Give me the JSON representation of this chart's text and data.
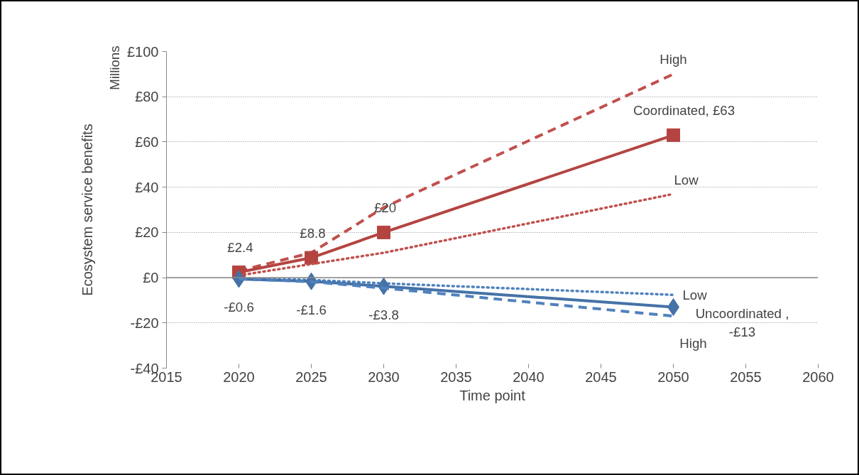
{
  "chart_data": {
    "type": "line",
    "xlabel": "Time point",
    "ylabel": "Ecosystem service benefits",
    "annotations": [
      "Millions"
    ],
    "x": [
      2020,
      2025,
      2030,
      2050
    ],
    "series": [
      {
        "name": "High",
        "color": "#c0504d",
        "line_style": "dashed",
        "marker": "none",
        "values": [
          3,
          11,
          31,
          90
        ]
      },
      {
        "color": "#b44441",
        "line_style": "solid",
        "marker": "square",
        "values": [
          2.4,
          8.8,
          20,
          63
        ],
        "value_labels": [
          "£2.4",
          "£8.8",
          "£20",
          "Coordinated, £63"
        ]
      },
      {
        "name": "Low",
        "color": "#c0504d",
        "line_style": "dotted",
        "marker": "none",
        "values": [
          1,
          6,
          11,
          37
        ]
      },
      {
        "name": "Low",
        "color": "#4f81bd",
        "line_style": "dotted",
        "marker": "none",
        "values": [
          -0.3,
          -1,
          -2.5,
          -7.6
        ]
      },
      {
        "color": "#4572a7",
        "line_style": "solid",
        "marker": "diamond",
        "values": [
          -0.6,
          -1.6,
          -3.8,
          -13
        ],
        "value_labels": [
          "-£0.6",
          "-£1.6",
          "-£3.8",
          "Uncoordinated ,\n-£13"
        ]
      },
      {
        "name": "High",
        "color": "#4f81bd",
        "line_style": "dashed",
        "marker": "none",
        "values": [
          -0.5,
          -1.8,
          -4.6,
          -17
        ]
      }
    ],
    "xlim": [
      2015,
      2060
    ],
    "xticks": [
      2015,
      2020,
      2025,
      2030,
      2035,
      2040,
      2045,
      2050,
      2055,
      2060
    ],
    "ylim": [
      -40,
      100
    ],
    "yticks": [
      {
        "value": -40,
        "label": "-£40"
      },
      {
        "value": -20,
        "label": "-£20"
      },
      {
        "value": 0,
        "label": "£0"
      },
      {
        "value": 20,
        "label": "£20"
      },
      {
        "value": 40,
        "label": "£40"
      },
      {
        "value": 60,
        "label": "£60"
      },
      {
        "value": 80,
        "label": "£80"
      },
      {
        "value": 100,
        "label": "£100"
      }
    ],
    "grid": "y"
  }
}
